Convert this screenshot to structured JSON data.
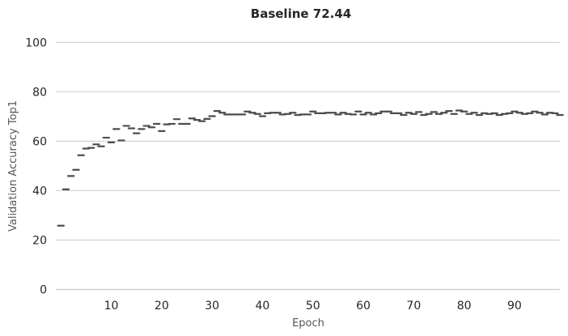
{
  "chart_data": {
    "type": "scatter",
    "title": "Baseline 72.44",
    "xlabel": "Epoch",
    "ylabel": "Validation Accuracy Top1",
    "xlim": [
      -1,
      99
    ],
    "ylim": [
      0,
      105
    ],
    "xticks": [
      10,
      20,
      30,
      40,
      50,
      60,
      70,
      80,
      90
    ],
    "yticks": [
      0,
      20,
      40,
      60,
      80,
      100
    ],
    "grid": "horizontal",
    "marker": "short horizontal dash",
    "color": "#4d4d4d",
    "series": [
      {
        "name": "Validation Accuracy Top1",
        "x": [
          0,
          1,
          2,
          3,
          4,
          5,
          6,
          7,
          8,
          9,
          10,
          11,
          12,
          13,
          14,
          15,
          16,
          17,
          18,
          19,
          20,
          21,
          22,
          23,
          24,
          25,
          26,
          27,
          28,
          29,
          30,
          31,
          32,
          33,
          34,
          35,
          36,
          37,
          38,
          39,
          40,
          41,
          42,
          43,
          44,
          45,
          46,
          47,
          48,
          49,
          50,
          51,
          52,
          53,
          54,
          55,
          56,
          57,
          58,
          59,
          60,
          61,
          62,
          63,
          64,
          65,
          66,
          67,
          68,
          69,
          70,
          71,
          72,
          73,
          74,
          75,
          76,
          77,
          78,
          79,
          80,
          81,
          82,
          83,
          84,
          85,
          86,
          87,
          88,
          89,
          90,
          91,
          92,
          93,
          94,
          95,
          96,
          97,
          98,
          99
        ],
        "values": [
          25.8,
          40.5,
          45.9,
          48.4,
          54.3,
          57.0,
          57.3,
          58.7,
          57.9,
          61.4,
          59.5,
          64.9,
          60.3,
          66.2,
          65.2,
          63.2,
          64.9,
          66.2,
          65.6,
          67.0,
          64.1,
          66.8,
          67.0,
          68.9,
          67.0,
          67.0,
          69.2,
          68.6,
          68.1,
          69.0,
          70.1,
          72.2,
          71.5,
          70.8,
          70.8,
          70.8,
          70.8,
          72.0,
          71.5,
          71.0,
          70.1,
          71.3,
          71.5,
          71.5,
          70.8,
          71.0,
          71.5,
          70.6,
          70.8,
          70.8,
          72.0,
          71.3,
          71.3,
          71.5,
          71.5,
          70.8,
          71.5,
          71.0,
          70.8,
          72.0,
          70.8,
          71.5,
          70.8,
          71.3,
          72.0,
          72.0,
          71.3,
          71.3,
          70.6,
          71.5,
          71.0,
          71.8,
          70.6,
          71.0,
          71.8,
          71.0,
          71.5,
          72.2,
          71.0,
          72.4,
          72.0,
          71.0,
          71.5,
          70.6,
          71.3,
          71.0,
          71.3,
          70.6,
          71.0,
          71.3,
          72.0,
          71.5,
          71.0,
          71.3,
          72.0,
          71.5,
          70.8,
          71.5,
          71.3,
          70.6
        ]
      }
    ]
  }
}
